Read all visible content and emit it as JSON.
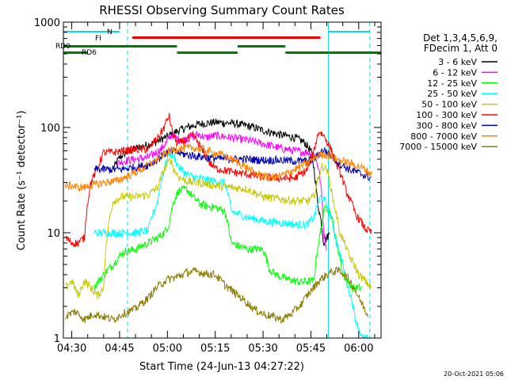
{
  "chart_data": {
    "type": "line",
    "title": "RHESSI Observing Summary Count Rates",
    "xlabel": "Start Time (24-Jun-13 04:27:22)",
    "ylabel": "Count Rate (s⁻¹ detector⁻¹)",
    "yscale": "log",
    "ylim": [
      1,
      1000
    ],
    "y_ticks": [
      {
        "value": 1,
        "label": "1"
      },
      {
        "value": 10,
        "label": "10"
      },
      {
        "value": 100,
        "label": "100"
      },
      {
        "value": 1000,
        "label": "1000"
      }
    ],
    "x_ticks": [
      "04:30",
      "04:45",
      "05:00",
      "05:15",
      "05:30",
      "05:45",
      "06:00"
    ],
    "x_tick_minutes": [
      30,
      45,
      60,
      75,
      90,
      105,
      120
    ],
    "xlim_minutes": [
      27.37,
      127
    ],
    "grid": false,
    "legend_position": "right",
    "legend_header": [
      "Det 1,3,4,5,6,9,",
      "FDecim 1, Att 0"
    ],
    "timestamp": "20-Oct-2021 05:06",
    "annotations": {
      "N": "N",
      "FI": "FI",
      "RD0": "RD0",
      "RD6": "RD6"
    },
    "series": [
      {
        "name": "3 - 6 keV",
        "color": "#000000",
        "t": [
          43,
          45,
          48,
          52,
          56,
          60,
          63,
          66,
          70,
          75,
          80,
          85,
          90,
          95,
          100,
          103,
          105,
          107,
          109,
          111
        ],
        "y": [
          40,
          52,
          60,
          66,
          72,
          82,
          92,
          100,
          108,
          112,
          110,
          104,
          94,
          86,
          80,
          72,
          60,
          20,
          8,
          10
        ]
      },
      {
        "name": "6 - 12 keV",
        "color": "#ff00ff",
        "t": [
          44,
          46,
          50,
          54,
          58,
          60,
          61.5,
          63,
          65,
          68,
          70,
          72,
          75,
          80,
          85,
          90,
          95,
          100,
          104,
          106,
          107.5,
          109,
          110
        ],
        "y": [
          45,
          48,
          50,
          52,
          62,
          74,
          86,
          78,
          76,
          82,
          86,
          80,
          84,
          80,
          76,
          70,
          64,
          60,
          58,
          56,
          40,
          10,
          7
        ]
      },
      {
        "name": "12 - 25 keV",
        "color": "#00ff00",
        "t": [
          37,
          40,
          43,
          46,
          50,
          54,
          57,
          59,
          60.5,
          62,
          63.5,
          66,
          68,
          70,
          72,
          75,
          78,
          80,
          85,
          90,
          92,
          94,
          98,
          102,
          106,
          108,
          109.5,
          111,
          113,
          115,
          118,
          121
        ],
        "y": [
          3,
          4,
          5,
          6.5,
          7,
          8,
          9,
          10,
          12,
          20,
          25,
          26,
          22,
          19,
          18,
          17.5,
          16,
          8,
          7,
          7,
          4.5,
          4,
          3.6,
          3.4,
          3.5,
          10,
          18,
          16,
          8,
          4,
          3,
          3
        ]
      },
      {
        "name": "25 - 50 keV",
        "color": "#00ffff",
        "t": [
          37,
          40,
          45,
          50,
          54,
          57,
          59,
          60.5,
          62,
          63.5,
          66,
          68,
          70,
          72,
          75,
          78,
          80,
          85,
          90,
          95,
          100,
          104,
          106,
          108,
          109.5,
          111,
          113,
          116,
          119,
          121,
          123
        ],
        "y": [
          10,
          10,
          10,
          10,
          10.5,
          20,
          40,
          57,
          53,
          42,
          36,
          34,
          33,
          32,
          31,
          30,
          16,
          14,
          13,
          12.5,
          12,
          12,
          14,
          22,
          20,
          15,
          8,
          3.5,
          1.5,
          1,
          1
        ]
      },
      {
        "name": "50 - 100 keV",
        "color": "#c8c800",
        "t": [
          28,
          30,
          32,
          34,
          36,
          38,
          40,
          43,
          46,
          50,
          54,
          57,
          59,
          61,
          62,
          63.5,
          66,
          68,
          70,
          75,
          80,
          85,
          90,
          95,
          100,
          104,
          106,
          107,
          108.5,
          110,
          112,
          114,
          117,
          120,
          122,
          124
        ],
        "y": [
          3,
          3.5,
          2.5,
          3.5,
          3,
          2.5,
          3,
          20,
          22,
          22,
          23,
          27,
          40,
          50,
          40,
          34,
          31,
          30,
          30,
          28,
          27,
          26,
          22,
          21,
          20,
          20,
          22,
          30,
          43,
          40,
          20,
          10,
          6,
          4,
          3.5,
          3
        ]
      },
      {
        "name": "100 - 300 keV",
        "color": "#ff0000",
        "t": [
          28,
          30,
          32,
          34,
          36,
          38,
          40,
          43,
          46,
          50,
          54,
          57,
          59,
          60.5,
          61.5,
          63,
          65,
          68,
          71,
          73,
          75,
          80,
          85,
          90,
          95,
          100,
          104,
          106,
          107.5,
          109,
          111,
          113,
          116,
          119,
          122,
          124
        ],
        "y": [
          9,
          8,
          8,
          9,
          30,
          40,
          58,
          58,
          60,
          62,
          62,
          80,
          100,
          130,
          90,
          70,
          74,
          85,
          60,
          47,
          41,
          38,
          36,
          34,
          33,
          33,
          40,
          60,
          92,
          84,
          65,
          45,
          25,
          15,
          11,
          10
        ]
      },
      {
        "name": "300 - 800 keV",
        "color": "#0000aa",
        "t": [
          37,
          40,
          45,
          50,
          54,
          57,
          59,
          61,
          63,
          66,
          70,
          75,
          80,
          85,
          90,
          95,
          100,
          104,
          106,
          107.5,
          109,
          111,
          114,
          117,
          120,
          122,
          124
        ],
        "y": [
          40,
          40,
          40,
          42,
          44,
          50,
          56,
          60,
          58,
          55,
          53,
          51,
          50,
          50,
          49,
          49,
          48,
          48,
          50,
          56,
          62,
          55,
          45,
          40,
          37,
          35,
          33
        ]
      },
      {
        "name": "800 - 7000 keV",
        "color": "#ff8000",
        "t": [
          28,
          30,
          32,
          34,
          36,
          40,
          44,
          48,
          52,
          56,
          59,
          62,
          65,
          68,
          71,
          74,
          77,
          80,
          84,
          88,
          92,
          96,
          100,
          104,
          107,
          109,
          111,
          113,
          116,
          119,
          122,
          124
        ],
        "y": [
          28,
          28,
          27,
          27,
          28,
          30,
          31,
          35,
          40,
          48,
          56,
          62,
          64,
          64,
          62,
          58,
          55,
          50,
          43,
          36,
          33,
          35,
          40,
          46,
          54,
          56,
          54,
          50,
          47,
          44,
          40,
          36
        ]
      },
      {
        "name": "7000 - 15000 keV",
        "color": "#8b7d00",
        "t": [
          28,
          31,
          34,
          37,
          40,
          43,
          46,
          50,
          54,
          57,
          60,
          63,
          66,
          69,
          72,
          75,
          78,
          81,
          84,
          87,
          90,
          93,
          96,
          99,
          102,
          105,
          108,
          111,
          114,
          117,
          120,
          123
        ],
        "y": [
          1.6,
          1.8,
          1.5,
          1.7,
          1.6,
          1.5,
          1.7,
          1.9,
          2.4,
          3.1,
          3.6,
          3.8,
          4.2,
          4.3,
          4.1,
          4.0,
          3.2,
          2.7,
          2.3,
          1.9,
          1.7,
          1.6,
          1.5,
          1.7,
          2.1,
          2.8,
          3.6,
          4.2,
          4.4,
          3.6,
          2.4,
          1.6
        ]
      }
    ]
  }
}
